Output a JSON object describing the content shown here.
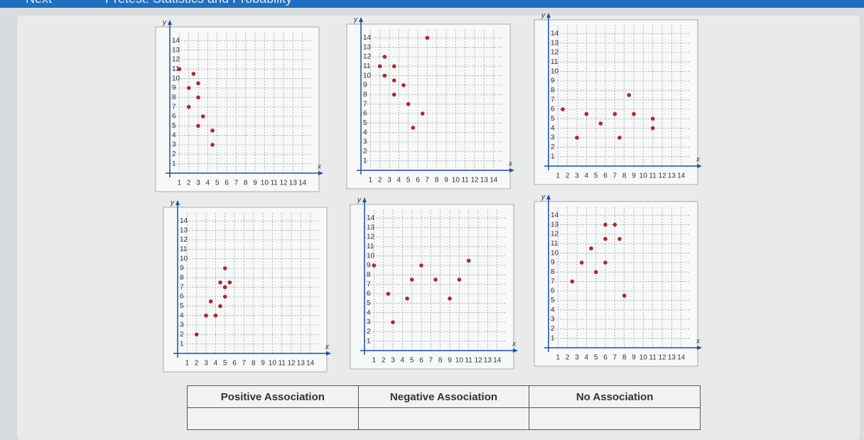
{
  "header": {
    "button": "Next",
    "title": "Pretest: Statistics and Probability"
  },
  "chart_data": [
    {
      "type": "scatter",
      "xlabel": "x",
      "ylabel": "y",
      "color": "#b3262a",
      "grid": true,
      "x": [
        1,
        2.5,
        2,
        3,
        3,
        2,
        3.5,
        3,
        4.5,
        4.5
      ],
      "values": [
        11,
        10.5,
        9,
        9.5,
        8,
        7,
        6,
        5,
        4.5,
        3
      ],
      "xlim": [
        0,
        15
      ],
      "ylim": [
        0,
        15
      ],
      "xticks": [
        1,
        2,
        3,
        4,
        5,
        6,
        7,
        8,
        9,
        10,
        11,
        12,
        13,
        14
      ],
      "yticks": [
        1,
        2,
        3,
        4,
        5,
        6,
        7,
        8,
        9,
        10,
        11,
        12,
        13,
        14
      ]
    },
    {
      "type": "scatter",
      "xlabel": "x",
      "ylabel": "y",
      "color": "#b3262a",
      "grid": true,
      "x": [
        7,
        2,
        2.5,
        3.5,
        2.5,
        3.5,
        3.5,
        4.5,
        5,
        6.5,
        5.5
      ],
      "values": [
        14,
        11,
        12,
        11,
        10,
        9.5,
        8,
        9,
        7,
        6,
        4.5
      ],
      "xlim": [
        0,
        15
      ],
      "ylim": [
        0,
        15
      ],
      "xticks": [
        1,
        2,
        3,
        4,
        5,
        6,
        7,
        8,
        9,
        10,
        11,
        12,
        13,
        14
      ],
      "yticks": [
        1,
        2,
        3,
        4,
        5,
        6,
        7,
        8,
        9,
        10,
        11,
        12,
        13,
        14
      ]
    },
    {
      "type": "scatter",
      "xlabel": "x",
      "ylabel": "y",
      "color": "#b3262a",
      "grid": true,
      "x": [
        1.5,
        3,
        4,
        5.5,
        7,
        8.5,
        7.5,
        9,
        11,
        11
      ],
      "values": [
        6,
        3,
        5.5,
        4.5,
        5.5,
        7.5,
        3,
        5.5,
        5,
        4
      ],
      "xlim": [
        0,
        15
      ],
      "ylim": [
        0,
        15
      ],
      "xticks": [
        1,
        2,
        3,
        4,
        5,
        6,
        7,
        8,
        9,
        10,
        11,
        12,
        13,
        14
      ],
      "yticks": [
        1,
        2,
        3,
        4,
        5,
        6,
        7,
        8,
        9,
        10,
        11,
        12,
        13,
        14
      ]
    },
    {
      "type": "scatter",
      "xlabel": "x",
      "ylabel": "y",
      "color": "#b3262a",
      "grid": true,
      "x": [
        2,
        3,
        3.5,
        4,
        4.5,
        4.5,
        5,
        5,
        5,
        5.5
      ],
      "values": [
        2,
        4,
        5.5,
        4,
        5,
        7.5,
        7,
        6,
        9,
        7.5
      ],
      "xlim": [
        0,
        15
      ],
      "ylim": [
        0,
        15
      ],
      "xticks": [
        1,
        2,
        3,
        4,
        5,
        6,
        7,
        8,
        9,
        10,
        11,
        12,
        13,
        14
      ],
      "yticks": [
        1,
        2,
        3,
        4,
        5,
        6,
        7,
        8,
        9,
        10,
        11,
        12,
        13,
        14
      ]
    },
    {
      "type": "scatter",
      "xlabel": "x",
      "ylabel": "y",
      "color": "#b3262a",
      "grid": true,
      "x": [
        1,
        2.5,
        3,
        4.5,
        5,
        6,
        7.5,
        9,
        10,
        11
      ],
      "values": [
        9,
        6,
        3,
        5.5,
        7.5,
        9,
        7.5,
        5.5,
        7.5,
        9.5
      ],
      "xlim": [
        0,
        15
      ],
      "ylim": [
        0,
        15
      ],
      "xticks": [
        1,
        2,
        3,
        4,
        5,
        6,
        7,
        8,
        9,
        10,
        11,
        12,
        13,
        14
      ],
      "yticks": [
        1,
        2,
        3,
        4,
        5,
        6,
        7,
        8,
        9,
        10,
        11,
        12,
        13,
        14
      ]
    },
    {
      "type": "scatter",
      "xlabel": "x",
      "ylabel": "y",
      "color": "#b3262a",
      "grid": true,
      "x": [
        2.5,
        3.5,
        4.5,
        5,
        6,
        6,
        6,
        7,
        7.5,
        8
      ],
      "values": [
        7,
        9,
        10.5,
        8,
        9,
        13,
        11.5,
        13,
        11.5,
        5.5
      ],
      "xlim": [
        0,
        15
      ],
      "ylim": [
        0,
        15
      ],
      "xticks": [
        1,
        2,
        3,
        4,
        5,
        6,
        7,
        8,
        9,
        10,
        11,
        12,
        13,
        14
      ],
      "yticks": [
        1,
        2,
        3,
        4,
        5,
        6,
        7,
        8,
        9,
        10,
        11,
        12,
        13,
        14
      ]
    }
  ],
  "table": {
    "headers": [
      "Positive Association",
      "Negative Association",
      "No Association"
    ]
  }
}
